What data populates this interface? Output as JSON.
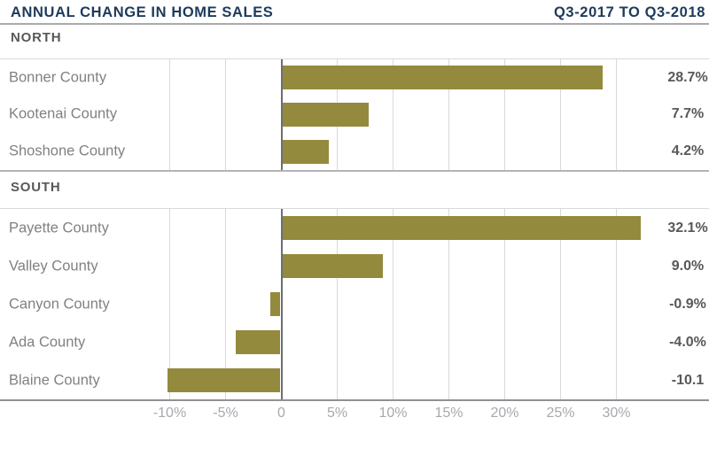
{
  "header": {
    "title": "ANNUAL CHANGE IN HOME SALES",
    "period": "Q3-2017 TO Q3-2018"
  },
  "chart_data": {
    "type": "bar",
    "orientation": "horizontal",
    "title": "ANNUAL CHANGE IN HOME SALES",
    "period": "Q3-2017 TO Q3-2018",
    "unit": "%",
    "bar_color": "#938a3e",
    "sections": [
      {
        "label": "NORTH",
        "rows": [
          {
            "category": "Bonner County",
            "value": 28.7,
            "value_label": "28.7%"
          },
          {
            "category": "Kootenai County",
            "value": 7.7,
            "value_label": "7.7%"
          },
          {
            "category": "Shoshone County",
            "value": 4.2,
            "value_label": "4.2%"
          }
        ]
      },
      {
        "label": "SOUTH",
        "rows": [
          {
            "category": "Payette County",
            "value": 32.1,
            "value_label": "32.1%"
          },
          {
            "category": "Valley County",
            "value": 9.0,
            "value_label": "9.0%"
          },
          {
            "category": "Canyon County",
            "value": -0.9,
            "value_label": "-0.9%"
          },
          {
            "category": "Ada County",
            "value": -4.0,
            "value_label": "-4.0%"
          },
          {
            "category": "Blaine County",
            "value": -10.1,
            "value_label": "-10.1"
          }
        ]
      }
    ],
    "x_axis": {
      "range": [
        -10,
        30
      ],
      "gridline_values": [
        -10,
        -5,
        0,
        5,
        10,
        15,
        20,
        25,
        30
      ],
      "ticks": [
        {
          "value": -10,
          "label": "-10%"
        },
        {
          "value": -5,
          "label": "-5%"
        },
        {
          "value": 0,
          "label": "0"
        },
        {
          "value": 5,
          "label": "5%"
        },
        {
          "value": 10,
          "label": "10%"
        },
        {
          "value": 15,
          "label": "15%"
        },
        {
          "value": 20,
          "label": "20%"
        },
        {
          "value": 25,
          "label": "25%"
        },
        {
          "value": 30,
          "label": "30%"
        }
      ]
    },
    "colors": {
      "bar_olive": "#938a3e",
      "title_navy": "#1d3a5c",
      "text_dark_gray": "#57585a",
      "text_mid_gray": "#7f8184",
      "text_light_gray": "#a7a9ac",
      "gridline_gray": "#d8d9da",
      "zero_line_gray": "#6d6e71"
    },
    "grid": "vertical-on",
    "legend": "none"
  }
}
